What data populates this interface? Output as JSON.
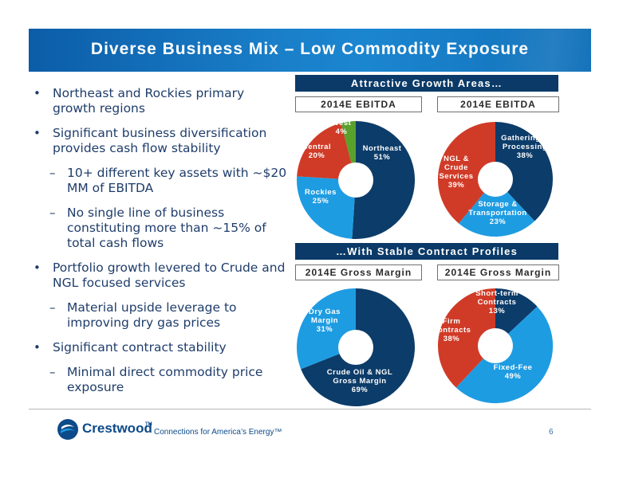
{
  "title": "Diverse Business Mix – Low Commodity Exposure",
  "bullets": [
    {
      "level": 1,
      "text": "Northeast and Rockies primary growth regions"
    },
    {
      "level": 1,
      "text": "Significant business diversification provides cash flow stability"
    },
    {
      "level": 2,
      "text": "10+ different key assets with ~$20 MM of EBITDA"
    },
    {
      "level": 2,
      "text": "No single line of business constituting more than ~15% of total cash flows"
    },
    {
      "level": 1,
      "text": "Portfolio growth levered to Crude and NGL focused services"
    },
    {
      "level": 2,
      "text": "Material upside leverage to improving dry gas prices"
    },
    {
      "level": 1,
      "text": "Significant contract stability"
    },
    {
      "level": 2,
      "text": "Minimal direct commodity price exposure"
    }
  ],
  "section_headers": {
    "growth": "Attractive Growth Areas…",
    "contracts": "…With Stable Contract Profiles"
  },
  "colors": {
    "navy": "#0c3c69",
    "light_blue": "#1e9ce2",
    "red": "#d03b27",
    "green": "#5aa12c"
  },
  "chart_data": [
    {
      "type": "pie",
      "title": "2014E EBITDA",
      "slices": [
        {
          "label": [
            "Northeast",
            "51%"
          ],
          "value": 51,
          "color": "#0c3c69"
        },
        {
          "label": [
            "Rockies",
            "25%"
          ],
          "value": 25,
          "color": "#1e9ce2"
        },
        {
          "label": [
            "Central",
            "20%"
          ],
          "value": 20,
          "color": "#d03b27"
        },
        {
          "label": [
            "West",
            "4%"
          ],
          "value": 4,
          "color": "#5aa12c"
        }
      ]
    },
    {
      "type": "pie",
      "title": "2014E EBITDA",
      "slices": [
        {
          "label": [
            "Gathering &",
            "Processing",
            "38%"
          ],
          "value": 38,
          "color": "#0c3c69"
        },
        {
          "label": [
            "Storage &",
            "Transportation",
            "23%"
          ],
          "value": 23,
          "color": "#1e9ce2"
        },
        {
          "label": [
            "NGL &",
            "Crude",
            "Services",
            "39%"
          ],
          "value": 39,
          "color": "#d03b27"
        }
      ]
    },
    {
      "type": "pie",
      "title": "2014E Gross Margin",
      "slices": [
        {
          "label": [
            "Crude Oil & NGL",
            "Gross Margin",
            "69%"
          ],
          "value": 69,
          "color": "#0c3c69"
        },
        {
          "label": [
            "Dry Gas",
            "Margin",
            "31%"
          ],
          "value": 31,
          "color": "#1e9ce2"
        }
      ]
    },
    {
      "type": "pie",
      "title": "2014E Gross Margin",
      "slices": [
        {
          "label": [
            "Short-term",
            "Contracts",
            "13%"
          ],
          "value": 13,
          "color": "#0c3c69"
        },
        {
          "label": [
            "Fixed-Fee",
            "49%"
          ],
          "value": 49,
          "color": "#1e9ce2"
        },
        {
          "label": [
            "Firm",
            "Contracts",
            "38%"
          ],
          "value": 38,
          "color": "#d03b27"
        }
      ]
    }
  ],
  "footer": {
    "brand": "Crestwood",
    "tm": "TM",
    "tagline": "Connections for America’s Energy™",
    "page": "6"
  }
}
